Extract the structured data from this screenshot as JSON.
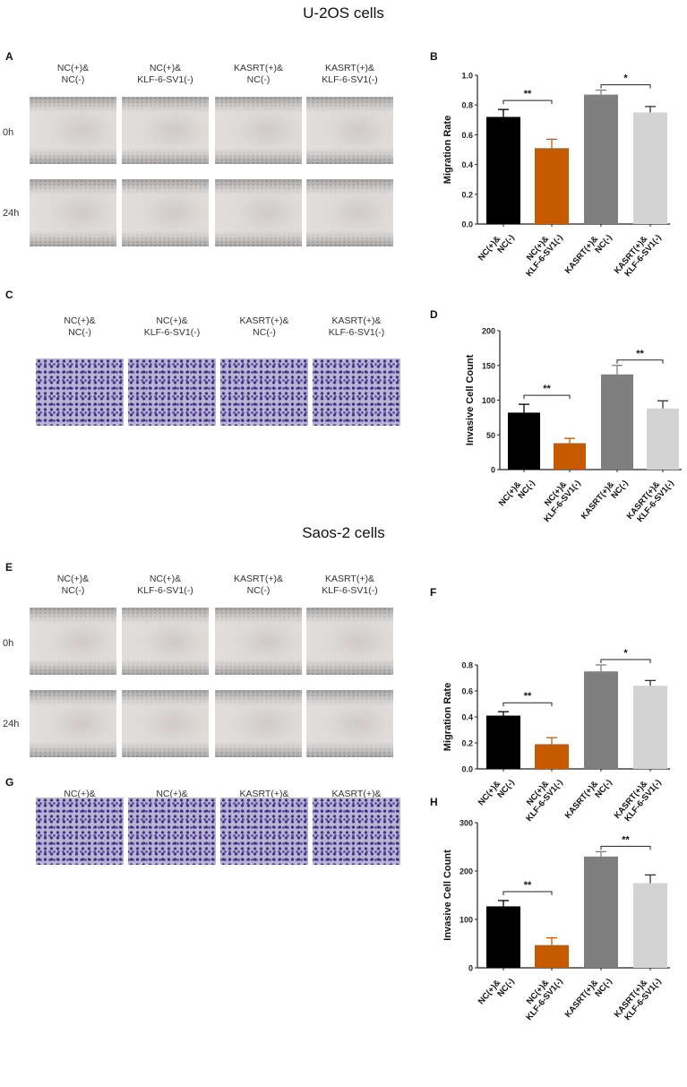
{
  "sections": [
    {
      "title": "U-2OS cells"
    },
    {
      "title": "Saos-2 cells"
    }
  ],
  "panels": {
    "A": "A",
    "B": "B",
    "C": "C",
    "D": "D",
    "E": "E",
    "F": "F",
    "G": "G",
    "H": "H"
  },
  "columns": [
    {
      "line1": "NC(+)&",
      "line2": "NC(-)"
    },
    {
      "line1": "NC(+)&",
      "line2": "KLF-6-SV1(-)"
    },
    {
      "line1": "KASRT(+)&",
      "line2": "NC(-)"
    },
    {
      "line1": "KASRT(+)&",
      "line2": "KLF-6-SV1(-)"
    }
  ],
  "rows": {
    "t0": "0h",
    "t24": "24h"
  },
  "colors": {
    "black": "#000000",
    "orange": "#c55a00",
    "gray": "#7f7f7f",
    "light": "#d3d3d3"
  },
  "chart_data": [
    {
      "panel": "B",
      "type": "bar",
      "ylabel": "Migration Rate",
      "ylim": [
        0,
        1.0
      ],
      "ticks": [
        "0.0",
        "0.2",
        "0.4",
        "0.6",
        "0.8",
        "1.0"
      ],
      "categories": [
        [
          "NC(+)&",
          "NC(-)"
        ],
        [
          "NC(+)&",
          "KLF-6-SV1(-)"
        ],
        [
          "KASRT(+)&",
          "NC(-)"
        ],
        [
          "KASRT(+)&",
          "KLF-6-SV1(-)"
        ]
      ],
      "values": [
        0.72,
        0.51,
        0.87,
        0.75
      ],
      "errors": [
        0.05,
        0.06,
        0.03,
        0.04
      ],
      "significance": [
        {
          "pair": [
            0,
            1
          ],
          "label": "**"
        },
        {
          "pair": [
            2,
            3
          ],
          "label": "*"
        }
      ]
    },
    {
      "panel": "D",
      "type": "bar",
      "ylabel": "Invasive Cell Count",
      "ylim": [
        0,
        200
      ],
      "ticks": [
        "0",
        "50",
        "100",
        "150",
        "200"
      ],
      "categories": [
        [
          "NC(+)&",
          "NC(-)"
        ],
        [
          "NC(+)&",
          "KLF-6-SV1(-)"
        ],
        [
          "KASRT(+)&",
          "NC(-)"
        ],
        [
          "KASRT(+)&",
          "KLF-6-SV1(-)"
        ]
      ],
      "values": [
        82,
        38,
        137,
        88
      ],
      "errors": [
        12,
        7,
        13,
        11
      ],
      "significance": [
        {
          "pair": [
            0,
            1
          ],
          "label": "**"
        },
        {
          "pair": [
            2,
            3
          ],
          "label": "**"
        }
      ]
    },
    {
      "panel": "F",
      "type": "bar",
      "ylabel": "Migration Rate",
      "ylim": [
        0,
        1.0
      ],
      "ticks": [
        "0.0",
        "0.2",
        "0.4",
        "0.6",
        "0.8"
      ],
      "categories": [
        [
          "NC(+)&",
          "NC(-)"
        ],
        [
          "NC(+)&",
          "KLF-6-SV1(-)"
        ],
        [
          "KASRT(+)&",
          "NC(-)"
        ],
        [
          "KASRT(+)&",
          "KLF-6-SV1(-)"
        ]
      ],
      "values": [
        0.41,
        0.19,
        0.75,
        0.64
      ],
      "errors": [
        0.03,
        0.05,
        0.05,
        0.04
      ],
      "significance": [
        {
          "pair": [
            0,
            1
          ],
          "label": "**"
        },
        {
          "pair": [
            2,
            3
          ],
          "label": "*"
        }
      ]
    },
    {
      "panel": "H",
      "type": "bar",
      "ylabel": "Invasive Cell Count",
      "ylim": [
        0,
        300
      ],
      "ticks": [
        "0",
        "100",
        "200",
        "300"
      ],
      "categories": [
        [
          "NC(+)&",
          "NC(-)"
        ],
        [
          "NC(+)&",
          "KLF-6-SV1(-)"
        ],
        [
          "KASRT(+)&",
          "NC(-)"
        ],
        [
          "KASRT(+)&",
          "KLF-6-SV1(-)"
        ]
      ],
      "values": [
        127,
        47,
        230,
        175
      ],
      "errors": [
        12,
        15,
        10,
        17
      ],
      "significance": [
        {
          "pair": [
            0,
            1
          ],
          "label": "**"
        },
        {
          "pair": [
            2,
            3
          ],
          "label": "**"
        }
      ]
    }
  ]
}
